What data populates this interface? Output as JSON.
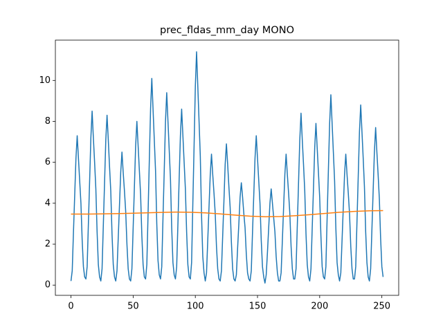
{
  "chart_data": {
    "type": "line",
    "title": "prec_fldas_mm_day MONO",
    "xlim": [
      -12.55,
      263.55
    ],
    "xticks": [
      0,
      50,
      100,
      150,
      200,
      250
    ],
    "ylim": [
      -0.5,
      11.97
    ],
    "yticks": [
      0,
      2,
      4,
      6,
      8,
      10
    ],
    "series": [
      {
        "color": "#1f77b4",
        "x": [
          0,
          1,
          2,
          3,
          4,
          5,
          6,
          7,
          8,
          9,
          10,
          11,
          12,
          13,
          14,
          15,
          16,
          17,
          18,
          19,
          20,
          21,
          22,
          23,
          24,
          25,
          26,
          27,
          28,
          29,
          30,
          31,
          32,
          33,
          34,
          35,
          36,
          37,
          38,
          39,
          40,
          41,
          42,
          43,
          44,
          45,
          46,
          47,
          48,
          49,
          50,
          51,
          52,
          53,
          54,
          55,
          56,
          57,
          58,
          59,
          60,
          61,
          62,
          63,
          64,
          65,
          66,
          67,
          68,
          69,
          70,
          71,
          72,
          73,
          74,
          75,
          76,
          77,
          78,
          79,
          80,
          81,
          82,
          83,
          84,
          85,
          86,
          87,
          88,
          89,
          90,
          91,
          92,
          93,
          94,
          95,
          96,
          97,
          98,
          99,
          100,
          101,
          102,
          103,
          104,
          105,
          106,
          107,
          108,
          109,
          110,
          111,
          112,
          113,
          114,
          115,
          116,
          117,
          118,
          119,
          120,
          121,
          122,
          123,
          124,
          125,
          126,
          127,
          128,
          129,
          130,
          131,
          132,
          133,
          134,
          135,
          136,
          137,
          138,
          139,
          140,
          141,
          142,
          143,
          144,
          145,
          146,
          147,
          148,
          149,
          150,
          151,
          152,
          153,
          154,
          155,
          156,
          157,
          158,
          159,
          160,
          161,
          162,
          163,
          164,
          165,
          166,
          167,
          168,
          169,
          170,
          171,
          172,
          173,
          174,
          175,
          176,
          177,
          178,
          179,
          180,
          181,
          182,
          183,
          184,
          185,
          186,
          187,
          188,
          189,
          190,
          191,
          192,
          193,
          194,
          195,
          196,
          197,
          198,
          199,
          200,
          201,
          202,
          203,
          204,
          205,
          206,
          207,
          208,
          209,
          210,
          211,
          212,
          213,
          214,
          215,
          216,
          217,
          218,
          219,
          220,
          221,
          222,
          223,
          224,
          225,
          226,
          227,
          228,
          229,
          230,
          231,
          232,
          233,
          234,
          235,
          236,
          237,
          238,
          239,
          240,
          241,
          242,
          243,
          244,
          245,
          246,
          247,
          248,
          249,
          250,
          251
        ],
        "values": [
          0.2,
          0.7,
          2.6,
          4.4,
          6.2,
          7.3,
          6.2,
          5.1,
          4.0,
          2.2,
          0.9,
          0.4,
          0.3,
          0.9,
          3.0,
          5.1,
          7.2,
          8.5,
          7.2,
          6.0,
          4.7,
          2.6,
          1.0,
          0.4,
          0.2,
          0.8,
          2.9,
          5.0,
          7.1,
          8.3,
          7.1,
          5.8,
          4.6,
          2.5,
          1.0,
          0.4,
          0.2,
          0.7,
          2.3,
          3.9,
          5.5,
          6.5,
          5.5,
          4.6,
          3.6,
          2.0,
          0.8,
          0.3,
          0.2,
          0.8,
          2.8,
          4.8,
          6.8,
          8.0,
          6.8,
          5.6,
          4.4,
          2.4,
          1.0,
          0.4,
          0.3,
          1.0,
          3.5,
          6.1,
          8.6,
          10.1,
          8.6,
          7.1,
          5.6,
          3.0,
          1.2,
          0.5,
          0.3,
          0.9,
          3.3,
          5.6,
          8.0,
          9.4,
          8.0,
          6.6,
          5.2,
          2.8,
          1.1,
          0.5,
          0.3,
          0.9,
          3.0,
          5.2,
          7.3,
          8.6,
          7.3,
          6.0,
          4.7,
          2.6,
          1.0,
          0.4,
          0.3,
          1.1,
          4.0,
          6.8,
          9.7,
          11.4,
          9.7,
          8.0,
          6.3,
          3.4,
          1.4,
          0.6,
          0.2,
          0.6,
          2.2,
          3.8,
          5.4,
          6.4,
          5.4,
          4.5,
          3.5,
          1.9,
          0.8,
          0.3,
          0.2,
          0.7,
          2.4,
          4.1,
          5.9,
          6.9,
          5.9,
          4.8,
          3.8,
          2.1,
          0.8,
          0.3,
          0.2,
          0.5,
          1.8,
          3.0,
          4.3,
          5.0,
          4.3,
          3.5,
          2.8,
          1.5,
          0.6,
          0.3,
          0.2,
          0.7,
          2.6,
          4.4,
          6.2,
          7.3,
          6.2,
          5.1,
          4.0,
          2.2,
          0.9,
          0.4,
          0.1,
          0.5,
          1.6,
          2.8,
          4.0,
          4.7,
          4.0,
          3.3,
          2.6,
          1.4,
          0.6,
          0.2,
          0.2,
          0.6,
          2.2,
          3.8,
          5.4,
          6.4,
          5.4,
          4.5,
          3.5,
          1.9,
          0.8,
          0.3,
          0.3,
          0.8,
          2.9,
          5.0,
          7.1,
          8.4,
          7.1,
          5.9,
          4.6,
          2.5,
          1.0,
          0.4,
          0.2,
          0.8,
          2.8,
          4.7,
          6.7,
          7.9,
          6.7,
          5.5,
          4.3,
          2.4,
          0.9,
          0.4,
          0.3,
          0.9,
          3.3,
          5.6,
          7.9,
          9.3,
          7.9,
          6.5,
          5.1,
          2.8,
          1.1,
          0.5,
          0.2,
          0.6,
          2.2,
          3.8,
          5.4,
          6.4,
          5.4,
          4.5,
          3.5,
          1.9,
          0.8,
          0.3,
          0.3,
          0.9,
          3.1,
          5.3,
          7.5,
          8.8,
          7.5,
          6.2,
          4.8,
          2.6,
          1.1,
          0.4,
          0.2,
          0.8,
          2.7,
          4.6,
          6.5,
          7.7,
          6.5,
          5.4,
          4.2,
          2.3,
          0.9,
          0.4
        ]
      },
      {
        "color": "#ff7f0e",
        "x": [
          0,
          12,
          24,
          36,
          48,
          60,
          72,
          84,
          96,
          108,
          120,
          132,
          144,
          156,
          168,
          180,
          192,
          204,
          216,
          228,
          240,
          251
        ],
        "values": [
          3.47,
          3.47,
          3.48,
          3.49,
          3.51,
          3.53,
          3.55,
          3.57,
          3.56,
          3.53,
          3.48,
          3.42,
          3.37,
          3.34,
          3.35,
          3.39,
          3.44,
          3.5,
          3.56,
          3.6,
          3.63,
          3.64
        ]
      }
    ]
  }
}
